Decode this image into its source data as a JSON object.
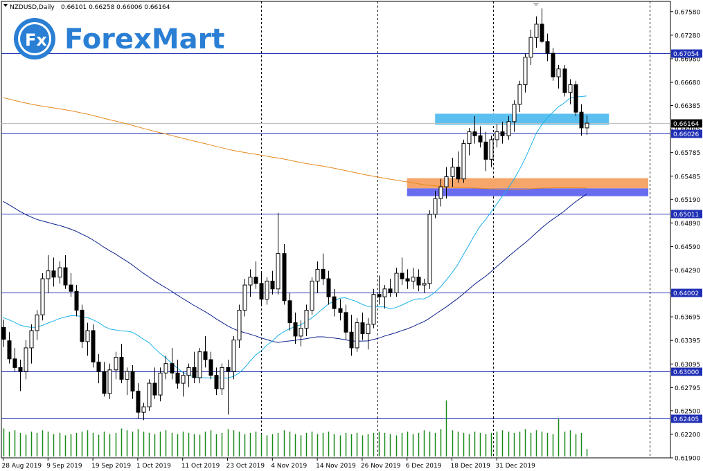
{
  "header": {
    "symbol": "NZDUSD,Daily",
    "ohlc": "0.66101 0.66258 0.66006 0.66164"
  },
  "logo": {
    "badge": "Fx",
    "text": "ForexMart"
  },
  "colors": {
    "bull": "#ffffff",
    "bear": "#000000",
    "ma_fast": "#1ab0e8",
    "ma_mid": "#0b1f8c",
    "ma_slow": "#e58a1e",
    "level_line": "#1f2fb5",
    "volume": "#1a8a1a",
    "zone_blue": "#5bc0f0",
    "zone_orange": "#f7a66b",
    "zone_violet": "#6a6cf0"
  },
  "chart_data": {
    "type": "candlestick",
    "symbol": "NZDUSD",
    "timeframe": "Daily",
    "ylim": [
      0.619,
      0.6771
    ],
    "y_ticks": [
      "0.67580",
      "0.67280",
      "0.66980",
      "0.66680",
      "0.66385",
      "0.66085",
      "0.65785",
      "0.65485",
      "0.65190",
      "0.64890",
      "0.64590",
      "0.64290",
      "0.63995",
      "0.63695",
      "0.63395",
      "0.63095",
      "0.62795",
      "0.62500",
      "0.62200",
      "0.61900"
    ],
    "x_labels": [
      {
        "label": "28 Aug 2019",
        "index": 0
      },
      {
        "label": "9 Sep 2019",
        "index": 8
      },
      {
        "label": "19 Sep 2019",
        "index": 16
      },
      {
        "label": "1 Oct 2019",
        "index": 24
      },
      {
        "label": "11 Oct 2019",
        "index": 32
      },
      {
        "label": "23 Oct 2019",
        "index": 40
      },
      {
        "label": "4 Nov 2019",
        "index": 48
      },
      {
        "label": "14 Nov 2019",
        "index": 56
      },
      {
        "label": "26 Nov 2019",
        "index": 64
      },
      {
        "label": "6 Dec 2019",
        "index": 72
      },
      {
        "label": "18 Dec 2019",
        "index": 80
      },
      {
        "label": "31 Dec 2019",
        "index": 88
      }
    ],
    "levels": [
      {
        "label": "0.67054",
        "value": 0.67054
      },
      {
        "label": "0.66026",
        "value": 0.66026
      },
      {
        "label": "0.65011",
        "value": 0.65011
      },
      {
        "label": "0.64002",
        "value": 0.64002
      },
      {
        "label": "0.63000",
        "value": 0.63
      },
      {
        "label": "0.62405",
        "value": 0.62405
      }
    ],
    "current_price": {
      "label": "0.66164",
      "value": 0.66164
    },
    "zones": [
      {
        "name": "blue",
        "color_key": "zone_blue",
        "y_top": 0.6628,
        "y_bottom": 0.6614,
        "start_index": 77,
        "end_index": 108
      },
      {
        "name": "orange",
        "color_key": "zone_orange",
        "y_top": 0.6546,
        "y_bottom": 0.6533,
        "start_index": 72,
        "end_index": 115
      },
      {
        "name": "violet",
        "color_key": "zone_violet",
        "y_top": 0.6533,
        "y_bottom": 0.6523,
        "start_index": 72,
        "end_index": 115
      }
    ],
    "candles": [
      [
        0.6356,
        0.6366,
        0.6331,
        0.6341
      ],
      [
        0.6339,
        0.635,
        0.631,
        0.6316
      ],
      [
        0.6316,
        0.633,
        0.63,
        0.6305
      ],
      [
        0.6305,
        0.6315,
        0.6275,
        0.63
      ],
      [
        0.63,
        0.634,
        0.629,
        0.633
      ],
      [
        0.633,
        0.636,
        0.631,
        0.6352
      ],
      [
        0.6352,
        0.6378,
        0.634,
        0.6372
      ],
      [
        0.6372,
        0.6425,
        0.6365,
        0.6418
      ],
      [
        0.6418,
        0.6448,
        0.64,
        0.6428
      ],
      [
        0.6428,
        0.6445,
        0.6408,
        0.642
      ],
      [
        0.642,
        0.644,
        0.6412,
        0.6432
      ],
      [
        0.6432,
        0.6448,
        0.6405,
        0.641
      ],
      [
        0.641,
        0.6425,
        0.6395,
        0.6402
      ],
      [
        0.6402,
        0.641,
        0.637,
        0.6378
      ],
      [
        0.6378,
        0.6385,
        0.633,
        0.6338
      ],
      [
        0.6338,
        0.6362,
        0.632,
        0.6352
      ],
      [
        0.6352,
        0.636,
        0.6305,
        0.6312
      ],
      [
        0.6312,
        0.6322,
        0.6285,
        0.63
      ],
      [
        0.63,
        0.6312,
        0.6268,
        0.6272
      ],
      [
        0.6272,
        0.631,
        0.6265,
        0.6302
      ],
      [
        0.6302,
        0.6325,
        0.629,
        0.6318
      ],
      [
        0.6318,
        0.6335,
        0.6285,
        0.629
      ],
      [
        0.629,
        0.6305,
        0.627,
        0.63
      ],
      [
        0.63,
        0.6308,
        0.6265,
        0.6275
      ],
      [
        0.6275,
        0.6285,
        0.624,
        0.6248
      ],
      [
        0.6248,
        0.626,
        0.6238,
        0.6255
      ],
      [
        0.6255,
        0.629,
        0.625,
        0.6285
      ],
      [
        0.6285,
        0.6305,
        0.6265,
        0.627
      ],
      [
        0.627,
        0.6305,
        0.6262,
        0.6298
      ],
      [
        0.6298,
        0.632,
        0.629,
        0.631
      ],
      [
        0.631,
        0.633,
        0.629,
        0.6298
      ],
      [
        0.6298,
        0.6315,
        0.6278,
        0.6285
      ],
      [
        0.6285,
        0.63,
        0.6268,
        0.6295
      ],
      [
        0.6295,
        0.631,
        0.628,
        0.6305
      ],
      [
        0.6305,
        0.6325,
        0.6285,
        0.6292
      ],
      [
        0.6292,
        0.633,
        0.6285,
        0.6325
      ],
      [
        0.6325,
        0.6345,
        0.6305,
        0.6315
      ],
      [
        0.6315,
        0.6325,
        0.629,
        0.6295
      ],
      [
        0.6295,
        0.6305,
        0.627,
        0.6278
      ],
      [
        0.6278,
        0.631,
        0.627,
        0.6305
      ],
      [
        0.6305,
        0.6315,
        0.6245,
        0.63
      ],
      [
        0.63,
        0.6345,
        0.629,
        0.634
      ],
      [
        0.634,
        0.6385,
        0.633,
        0.6378
      ],
      [
        0.6378,
        0.6418,
        0.637,
        0.641
      ],
      [
        0.641,
        0.643,
        0.6395,
        0.642
      ],
      [
        0.642,
        0.644,
        0.6405,
        0.6412
      ],
      [
        0.6412,
        0.6425,
        0.6385,
        0.6392
      ],
      [
        0.6392,
        0.642,
        0.6385,
        0.6415
      ],
      [
        0.6415,
        0.6428,
        0.6398,
        0.6405
      ],
      [
        0.6405,
        0.6502,
        0.6398,
        0.645
      ],
      [
        0.645,
        0.6462,
        0.6385,
        0.639
      ],
      [
        0.639,
        0.64,
        0.6352,
        0.6362
      ],
      [
        0.6362,
        0.6375,
        0.6335,
        0.6345
      ],
      [
        0.6345,
        0.6365,
        0.6332,
        0.6355
      ],
      [
        0.6355,
        0.6385,
        0.6345,
        0.6378
      ],
      [
        0.6378,
        0.642,
        0.6372,
        0.6415
      ],
      [
        0.6415,
        0.644,
        0.64,
        0.643
      ],
      [
        0.643,
        0.645,
        0.641,
        0.6418
      ],
      [
        0.6418,
        0.6428,
        0.6385,
        0.6395
      ],
      [
        0.6395,
        0.6405,
        0.637,
        0.638
      ],
      [
        0.638,
        0.6392,
        0.6365,
        0.6375
      ],
      [
        0.6375,
        0.6385,
        0.634,
        0.635
      ],
      [
        0.635,
        0.6372,
        0.632,
        0.633
      ],
      [
        0.633,
        0.6368,
        0.6325,
        0.6362
      ],
      [
        0.6362,
        0.6375,
        0.634,
        0.6348
      ],
      [
        0.6348,
        0.6368,
        0.6328,
        0.636
      ],
      [
        0.636,
        0.6405,
        0.6355,
        0.6398
      ],
      [
        0.6398,
        0.6422,
        0.6385,
        0.6395
      ],
      [
        0.6395,
        0.641,
        0.638,
        0.6405
      ],
      [
        0.6405,
        0.6418,
        0.6395,
        0.64
      ],
      [
        0.64,
        0.6432,
        0.6395,
        0.6425
      ],
      [
        0.6425,
        0.6445,
        0.641,
        0.6418
      ],
      [
        0.6418,
        0.643,
        0.6405,
        0.6415
      ],
      [
        0.6415,
        0.6432,
        0.6405,
        0.642
      ],
      [
        0.642,
        0.643,
        0.6402,
        0.641
      ],
      [
        0.641,
        0.6418,
        0.64,
        0.6412
      ],
      [
        0.6412,
        0.6505,
        0.6405,
        0.65
      ],
      [
        0.65,
        0.653,
        0.6495,
        0.652
      ],
      [
        0.652,
        0.6545,
        0.651,
        0.6535
      ],
      [
        0.6535,
        0.656,
        0.652,
        0.6548
      ],
      [
        0.6548,
        0.6572,
        0.6535,
        0.656
      ],
      [
        0.656,
        0.658,
        0.654,
        0.6545
      ],
      [
        0.6545,
        0.6595,
        0.654,
        0.659
      ],
      [
        0.659,
        0.661,
        0.6575,
        0.6605
      ],
      [
        0.6605,
        0.6625,
        0.659,
        0.66
      ],
      [
        0.66,
        0.6612,
        0.6585,
        0.6592
      ],
      [
        0.6592,
        0.6605,
        0.6555,
        0.657
      ],
      [
        0.657,
        0.66,
        0.656,
        0.6595
      ],
      [
        0.6595,
        0.6615,
        0.6585,
        0.6605
      ],
      [
        0.6605,
        0.6618,
        0.659,
        0.66
      ],
      [
        0.66,
        0.6625,
        0.6595,
        0.6618
      ],
      [
        0.6618,
        0.6645,
        0.6605,
        0.664
      ],
      [
        0.664,
        0.667,
        0.663,
        0.6665
      ],
      [
        0.6665,
        0.6705,
        0.6655,
        0.67
      ],
      [
        0.67,
        0.6735,
        0.669,
        0.6725
      ],
      [
        0.6725,
        0.6752,
        0.6712,
        0.6742
      ],
      [
        0.6742,
        0.6762,
        0.6718,
        0.672
      ],
      [
        0.672,
        0.673,
        0.6695,
        0.6705
      ],
      [
        0.6705,
        0.6712,
        0.667,
        0.6675
      ],
      [
        0.6675,
        0.669,
        0.666,
        0.6685
      ],
      [
        0.6685,
        0.669,
        0.665,
        0.6655
      ],
      [
        0.6655,
        0.6672,
        0.664,
        0.6665
      ],
      [
        0.6665,
        0.667,
        0.6625,
        0.663
      ],
      [
        0.663,
        0.664,
        0.66,
        0.661
      ],
      [
        0.661,
        0.6626,
        0.6601,
        0.6616
      ]
    ],
    "volumes": [
      0.45,
      0.4,
      0.42,
      0.38,
      0.35,
      0.4,
      0.38,
      0.42,
      0.4,
      0.36,
      0.38,
      0.34,
      0.36,
      0.38,
      0.4,
      0.42,
      0.38,
      0.35,
      0.4,
      0.36,
      0.38,
      0.45,
      0.42,
      0.4,
      0.44,
      0.4,
      0.38,
      0.36,
      0.4,
      0.42,
      0.38,
      0.36,
      0.4,
      0.38,
      0.36,
      0.35,
      0.4,
      0.42,
      0.36,
      0.38,
      0.44,
      0.42,
      0.4,
      0.36,
      0.38,
      0.4,
      0.36,
      0.34,
      0.36,
      0.38,
      0.42,
      0.4,
      0.36,
      0.34,
      0.38,
      0.4,
      0.36,
      0.38,
      0.4,
      0.36,
      0.34,
      0.38,
      0.36,
      0.38,
      0.34,
      0.36,
      0.38,
      0.4,
      0.38,
      0.36,
      0.34,
      0.38,
      0.4,
      0.36,
      0.38,
      0.42,
      0.4,
      0.38,
      0.44,
      0.9,
      0.42,
      0.4,
      0.38,
      0.36,
      0.4,
      0.38,
      0.36,
      0.38,
      0.4,
      0.42,
      0.4,
      0.38,
      0.4,
      0.44,
      0.38,
      0.42,
      0.4,
      0.38,
      0.36,
      0.6,
      0.4,
      0.42,
      0.36,
      0.38,
      0.12
    ]
  }
}
